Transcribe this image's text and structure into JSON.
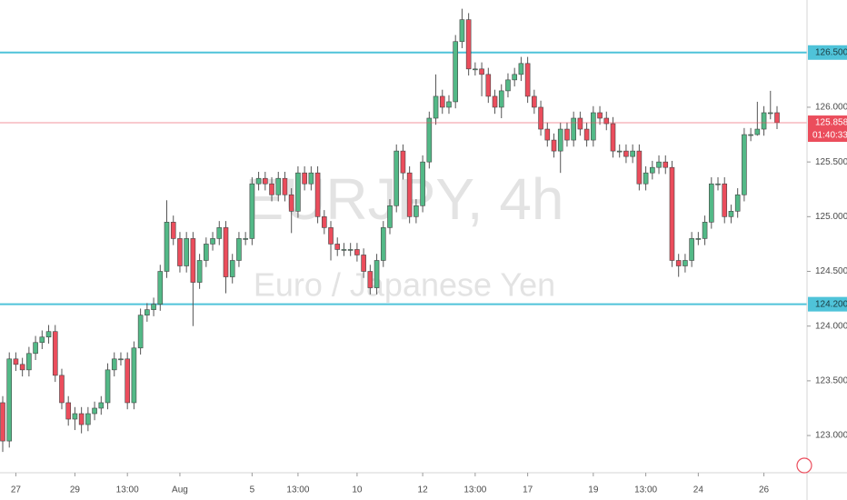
{
  "chart_data": {
    "type": "candlestick",
    "title": "EURJPY, 4h",
    "subtitle": "Euro / Japanese Yen",
    "categories": [
      null,
      null,
      "27",
      null,
      null,
      null,
      null,
      null,
      null,
      null,
      null,
      "29",
      null,
      null,
      null,
      null,
      null,
      null,
      null,
      "13:00",
      null,
      null,
      null,
      null,
      null,
      null,
      null,
      "Aug",
      null,
      null,
      null,
      null,
      null,
      null,
      null,
      null,
      null,
      null,
      "5",
      null,
      null,
      null,
      null,
      null,
      null,
      "13:00",
      null,
      null,
      null,
      null,
      null,
      null,
      null,
      null,
      "10",
      null,
      null,
      null,
      null,
      null,
      null,
      null,
      null,
      null,
      "12",
      null,
      null,
      null,
      null,
      null,
      null,
      null,
      "13:00",
      null,
      null,
      null,
      null,
      null,
      null,
      null,
      "17",
      null,
      null,
      null,
      null,
      null,
      null,
      null,
      null,
      null,
      "19",
      null,
      null,
      null,
      null,
      null,
      null,
      null,
      "13:00",
      null,
      null,
      null,
      null,
      null,
      null,
      null,
      "24",
      null,
      null,
      null,
      null,
      null,
      null,
      null,
      null,
      null,
      "26",
      null,
      null
    ],
    "open": [
      123.3,
      122.95,
      123.7,
      123.65,
      123.6,
      123.75,
      123.85,
      123.9,
      123.95,
      123.55,
      123.3,
      123.15,
      123.2,
      123.1,
      123.2,
      123.25,
      123.3,
      123.6,
      123.7,
      123.7,
      123.3,
      123.8,
      124.1,
      124.15,
      124.2,
      124.5,
      124.95,
      124.8,
      124.55,
      124.8,
      124.4,
      124.6,
      124.75,
      124.8,
      124.9,
      124.45,
      124.6,
      124.8,
      124.8,
      125.3,
      125.35,
      125.3,
      125.2,
      125.35,
      125.2,
      125.05,
      125.4,
      125.3,
      125.4,
      125.0,
      124.9,
      124.75,
      124.7,
      124.7,
      124.7,
      124.65,
      124.5,
      124.35,
      124.6,
      124.9,
      125.1,
      125.6,
      125.4,
      125.0,
      125.1,
      125.5,
      125.9,
      126.1,
      126.0,
      126.05,
      126.6,
      126.8,
      126.35,
      126.35,
      126.3,
      126.1,
      126.0,
      126.15,
      126.25,
      126.3,
      126.4,
      126.1,
      126.0,
      125.8,
      125.7,
      125.6,
      125.8,
      125.7,
      125.9,
      125.8,
      125.7,
      125.95,
      125.9,
      125.85,
      125.6,
      125.6,
      125.55,
      125.6,
      125.3,
      125.4,
      125.45,
      125.5,
      125.45,
      124.6,
      124.55,
      124.6,
      124.8,
      124.8,
      124.95,
      125.3,
      125.3,
      125.0,
      125.05,
      125.2,
      125.75,
      125.75,
      125.8,
      125.95,
      125.95
    ],
    "high": [
      123.36,
      123.76,
      123.76,
      123.71,
      123.81,
      123.91,
      123.96,
      124.01,
      124.01,
      123.61,
      123.36,
      123.26,
      123.26,
      123.26,
      123.31,
      123.36,
      123.66,
      123.76,
      123.76,
      123.76,
      123.86,
      124.16,
      124.21,
      124.26,
      124.56,
      125.15,
      125.01,
      124.86,
      124.86,
      124.86,
      124.66,
      124.81,
      124.86,
      124.96,
      124.96,
      124.66,
      124.86,
      124.86,
      125.36,
      125.41,
      125.41,
      125.36,
      125.41,
      125.41,
      125.26,
      125.46,
      125.46,
      125.46,
      125.46,
      125.06,
      124.96,
      124.81,
      124.76,
      124.76,
      124.76,
      124.71,
      124.56,
      124.66,
      124.96,
      125.16,
      125.66,
      125.66,
      125.46,
      125.16,
      125.56,
      125.96,
      126.3,
      126.16,
      126.11,
      126.66,
      126.9,
      126.86,
      126.41,
      126.41,
      126.36,
      126.16,
      126.21,
      126.31,
      126.36,
      126.46,
      126.46,
      126.16,
      126.06,
      125.86,
      125.76,
      125.86,
      125.86,
      125.96,
      125.96,
      125.86,
      126.01,
      126.01,
      125.96,
      125.91,
      125.66,
      125.66,
      125.66,
      125.66,
      125.46,
      125.51,
      125.56,
      125.56,
      125.51,
      124.66,
      124.66,
      124.86,
      124.86,
      125.01,
      125.36,
      125.36,
      125.36,
      125.11,
      125.26,
      125.81,
      125.81,
      126.05,
      126.01,
      126.15,
      126.01
    ],
    "low": [
      122.85,
      122.89,
      123.59,
      123.54,
      123.54,
      123.69,
      123.79,
      123.84,
      123.49,
      123.24,
      123.09,
      123.05,
      123.02,
      123.04,
      123.14,
      123.19,
      123.24,
      123.54,
      123.64,
      123.24,
      123.24,
      123.74,
      124.04,
      124.09,
      124.14,
      124.44,
      124.74,
      124.49,
      124.49,
      124.0,
      124.34,
      124.54,
      124.69,
      124.74,
      124.3,
      124.39,
      124.54,
      124.74,
      124.74,
      125.24,
      125.24,
      125.14,
      125.14,
      125.14,
      124.85,
      124.99,
      125.24,
      125.24,
      124.94,
      124.84,
      124.6,
      124.64,
      124.64,
      124.64,
      124.59,
      124.44,
      124.29,
      124.29,
      124.54,
      124.84,
      125.04,
      125.34,
      124.94,
      124.94,
      125.04,
      125.44,
      125.84,
      125.94,
      125.94,
      125.99,
      126.54,
      126.29,
      126.29,
      126.1,
      126.04,
      125.94,
      125.9,
      126.09,
      126.19,
      126.24,
      126.04,
      125.94,
      125.74,
      125.64,
      125.54,
      125.4,
      125.64,
      125.64,
      125.74,
      125.64,
      125.64,
      125.84,
      125.79,
      125.54,
      125.54,
      125.49,
      125.49,
      125.24,
      125.24,
      125.34,
      125.39,
      125.39,
      124.54,
      124.45,
      124.49,
      124.54,
      124.74,
      124.74,
      124.89,
      125.24,
      124.94,
      124.94,
      124.99,
      125.14,
      125.69,
      125.74,
      125.74,
      125.89,
      125.8
    ],
    "close": [
      122.95,
      123.7,
      123.65,
      123.6,
      123.75,
      123.85,
      123.9,
      123.95,
      123.55,
      123.3,
      123.15,
      123.2,
      123.1,
      123.2,
      123.25,
      123.3,
      123.6,
      123.7,
      123.7,
      123.3,
      123.8,
      124.1,
      124.15,
      124.2,
      124.5,
      124.95,
      124.8,
      124.55,
      124.8,
      124.4,
      124.6,
      124.75,
      124.8,
      124.9,
      124.45,
      124.6,
      124.8,
      124.8,
      125.3,
      125.35,
      125.3,
      125.2,
      125.35,
      125.2,
      125.05,
      125.4,
      125.3,
      125.4,
      125.0,
      124.9,
      124.75,
      124.7,
      124.7,
      124.7,
      124.65,
      124.5,
      124.35,
      124.6,
      124.9,
      125.1,
      125.6,
      125.4,
      125.0,
      125.1,
      125.5,
      125.9,
      126.1,
      126.0,
      126.05,
      126.6,
      126.8,
      126.35,
      126.35,
      126.3,
      126.1,
      126.0,
      126.15,
      126.25,
      126.3,
      126.4,
      126.1,
      126.0,
      125.8,
      125.7,
      125.6,
      125.8,
      125.7,
      125.9,
      125.8,
      125.7,
      125.95,
      125.9,
      125.85,
      125.6,
      125.6,
      125.55,
      125.6,
      125.3,
      125.4,
      125.45,
      125.5,
      125.45,
      124.6,
      124.55,
      124.6,
      124.8,
      124.8,
      124.95,
      125.3,
      125.3,
      125.0,
      125.05,
      125.2,
      125.75,
      125.75,
      125.8,
      125.95,
      125.95,
      125.86
    ],
    "up_color": "#53b987",
    "down_color": "#eb4d5c",
    "ylim": [
      122.66,
      126.98
    ],
    "yticks": [
      {
        "value": 123,
        "label": "123.000"
      },
      {
        "value": 123.5,
        "label": "123.500"
      },
      {
        "value": 124,
        "label": "124.000"
      },
      {
        "value": 124.5,
        "label": "124.500"
      },
      {
        "value": 125,
        "label": "125.000"
      },
      {
        "value": 125.5,
        "label": "125.500"
      },
      {
        "value": 126,
        "label": "126.000"
      }
    ],
    "grid": false,
    "hlines": [
      {
        "value": 126.5,
        "label": "126.500"
      },
      {
        "value": 124.2,
        "label": "124.200"
      }
    ],
    "hline_color": "#4fc3d9",
    "last_price": {
      "value": 125.858,
      "label": "125.858"
    },
    "last_price_color": "#eb4d5c",
    "countdown": "01:40:33"
  }
}
